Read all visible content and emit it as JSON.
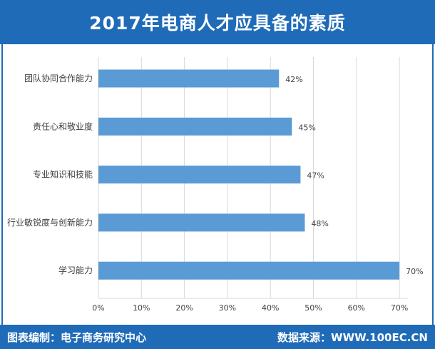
{
  "header": {
    "title": "2017年电商人才应具备的素质"
  },
  "footer": {
    "left": "图表编制：电子商务研究中心",
    "right": "数据来源：WWW.100EC.CN"
  },
  "colors": {
    "bar": "#5b9bd5",
    "banner": "#1f6bb8",
    "grid": "#d9d9d9",
    "text": "#404040"
  },
  "chart_data": {
    "type": "bar",
    "orientation": "horizontal",
    "categories": [
      "团队协同合作能力",
      "责任心和敬业度",
      "专业知识和技能",
      "行业敏锐度与创新能力",
      "学习能力"
    ],
    "values": [
      42,
      45,
      47,
      48,
      70
    ],
    "value_labels": [
      "42%",
      "45%",
      "47%",
      "48%",
      "70%"
    ],
    "x_ticks": [
      "0%",
      "10%",
      "20%",
      "30%",
      "40%",
      "50%",
      "60%",
      "70%"
    ],
    "xlim": [
      0,
      75
    ],
    "grid": true
  }
}
